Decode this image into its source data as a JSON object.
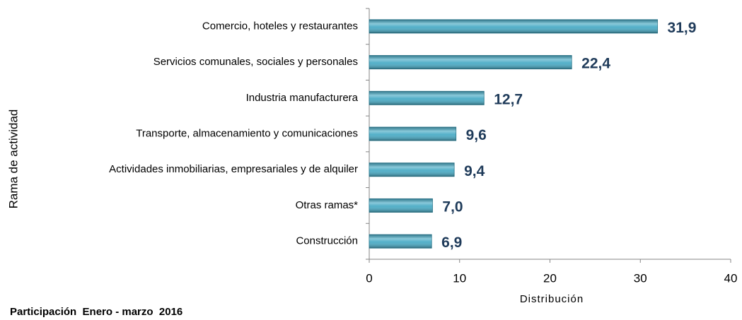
{
  "chart_data": {
    "type": "hbar",
    "x_label": "Distribución",
    "y_label": "Rama de actividad",
    "footer": "Participación  Enero - marzo  2016",
    "categories": [
      "Comercio, hoteles y restaurantes",
      "Servicios comunales, sociales y personales",
      "Industria manufacturera",
      "Transporte, almacenamiento y comunicaciones",
      "Actividades inmobiliarias, empresariales y de alquiler",
      "Otras ramas*",
      "Construcción"
    ],
    "values": [
      31.9,
      22.4,
      12.7,
      9.6,
      9.4,
      7.0,
      6.9
    ],
    "value_labels": [
      "31,9",
      "22,4",
      "12,7",
      "9,6",
      "9,4",
      "7,0",
      "6,9"
    ],
    "color": "#4bacc6",
    "xlim": [
      0,
      40
    ],
    "xticks": [
      0,
      10,
      20,
      30,
      40
    ],
    "grid": false
  }
}
